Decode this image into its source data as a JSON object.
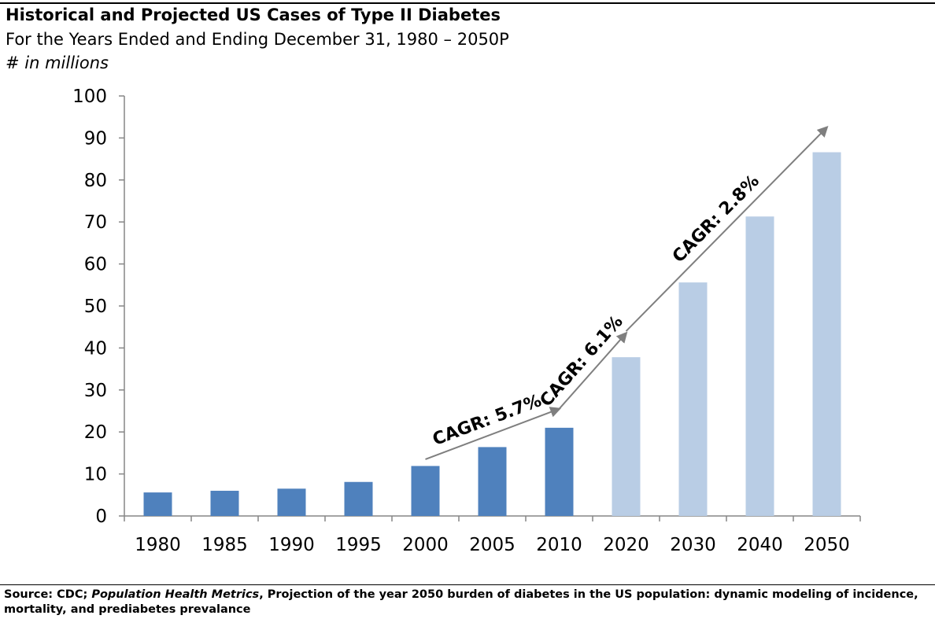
{
  "header": {
    "title": "Historical and Projected US Cases of Type II Diabetes",
    "subtitle": "For the Years Ended and Ending December 31, 1980 – 2050P",
    "units": "# in millions"
  },
  "footer": {
    "source_prefix": "Source: CDC; ",
    "source_italic": "Population Health Metrics",
    "source_rest": ", Projection of the year 2050 burden of diabetes in the US population: dynamic modeling of incidence, mortality, and prediabetes prevalance"
  },
  "chart_data": {
    "type": "bar",
    "title": "Historical and Projected US Cases of Type II Diabetes",
    "subtitle": "For the Years Ended and Ending December 31, 1980 – 2050P",
    "ylabel": "# in millions",
    "xlabel": "",
    "categories": [
      "1980",
      "1985",
      "1990",
      "1995",
      "2000",
      "2005",
      "2010",
      "2020",
      "2030",
      "2040",
      "2050"
    ],
    "values": [
      5.6,
      6.0,
      6.5,
      8.1,
      11.9,
      16.4,
      21.0,
      37.8,
      55.6,
      71.3,
      86.6
    ],
    "projected_from_index": 7,
    "ylim": [
      0,
      100
    ],
    "yticks": [
      0,
      10,
      20,
      30,
      40,
      50,
      60,
      70,
      80,
      90,
      100
    ],
    "grid": false,
    "legend": "none",
    "colors": {
      "historical": "#4f81bd",
      "projected": "#b9cde5",
      "axis": "#868686",
      "arrow": "#7f7f7f"
    },
    "annotations": [
      {
        "text": "CAGR: 5.7%",
        "from_index": 4,
        "to_index": 6,
        "y_from": 13.5,
        "y_to": 25.5
      },
      {
        "text": "CAGR: 6.1%",
        "from_index": 6,
        "to_index": 7,
        "y_from": 25.5,
        "y_to": 43.5
      },
      {
        "text": "CAGR: 2.8%",
        "from_index": 7,
        "to_index": 10,
        "y_from": 44.0,
        "y_to": 92.5
      }
    ]
  }
}
